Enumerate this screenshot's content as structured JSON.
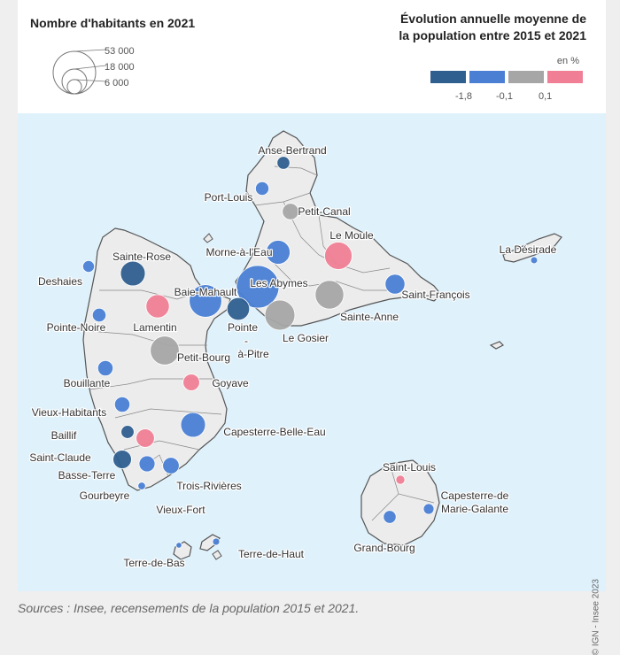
{
  "legend": {
    "size_title": "Nombre d'habitants en 2021",
    "size_values": [
      "53 000",
      "18 000",
      "6 000"
    ],
    "color_title_line1": "Évolution annuelle moyenne de",
    "color_title_line2": "la population entre 2015 et 2021",
    "unit": "en %",
    "classes": [
      {
        "color": "#2f5f8f"
      },
      {
        "color": "#4a7fd4"
      },
      {
        "color": "#a6a6a6"
      },
      {
        "color": "#f07f96"
      }
    ],
    "class_breaks": [
      "-1,8",
      "-0,1",
      "0,1"
    ]
  },
  "communes": [
    {
      "name": "Anse-Bertrand",
      "population": 4800,
      "class": 0
    },
    {
      "name": "Port-Louis",
      "population": 5300,
      "class": 1
    },
    {
      "name": "Petit-Canal",
      "population": 7900,
      "class": 2
    },
    {
      "name": "Le Moule",
      "population": 22100,
      "class": 3
    },
    {
      "name": "Morne-à-l'Eau",
      "population": 16800,
      "class": 1
    },
    {
      "name": "Les Abymes",
      "population": 53000,
      "class": 1
    },
    {
      "name": "Sainte-Rose",
      "population": 17900,
      "class": 0
    },
    {
      "name": "Deshaies",
      "population": 4000,
      "class": 1
    },
    {
      "name": "Baie-Mahault",
      "population": 31000,
      "class": 1
    },
    {
      "name": "Lamentin",
      "population": 16000,
      "class": 3
    },
    {
      "name": "Pointe-à-Pitre",
      "population": 15000,
      "class": 0
    },
    {
      "name": "Le Gosier",
      "population": 26500,
      "class": 2
    },
    {
      "name": "Sainte-Anne",
      "population": 24000,
      "class": 2
    },
    {
      "name": "Saint-François",
      "population": 11500,
      "class": 1
    },
    {
      "name": "La Désirade",
      "population": 1400,
      "class": 1
    },
    {
      "name": "Pointe-Noire",
      "population": 5500,
      "class": 1
    },
    {
      "name": "Petit-Bourg",
      "population": 24500,
      "class": 2
    },
    {
      "name": "Bouillante",
      "population": 6900,
      "class": 1
    },
    {
      "name": "Goyave",
      "population": 8100,
      "class": 3
    },
    {
      "name": "Vieux-Habitants",
      "population": 6900,
      "class": 1
    },
    {
      "name": "Capesterre-Belle-Eau",
      "population": 17900,
      "class": 1
    },
    {
      "name": "Baillif",
      "population": 5000,
      "class": 0
    },
    {
      "name": "Basse-Terre",
      "population": 9900,
      "class": 3
    },
    {
      "name": "Saint-Claude",
      "population": 10000,
      "class": 0
    },
    {
      "name": "Gourbeyre",
      "population": 7500,
      "class": 1
    },
    {
      "name": "Trois-Rivières",
      "population": 8000,
      "class": 1
    },
    {
      "name": "Vieux-Fort",
      "population": 1700,
      "class": 1
    },
    {
      "name": "Terre-de-Bas",
      "population": 1000,
      "class": 1
    },
    {
      "name": "Terre-de-Haut",
      "population": 1500,
      "class": 1
    },
    {
      "name": "Saint-Louis",
      "population": 2400,
      "class": 3
    },
    {
      "name": "Capesterre-de Marie-Galante",
      "population": 3300,
      "class": 1
    },
    {
      "name": "Grand-Bourg",
      "population": 4800,
      "class": 1
    }
  ],
  "credit": "© IGN - Insee 2023",
  "source": "Sources : Insee, recensements de la population 2015 et 2021."
}
